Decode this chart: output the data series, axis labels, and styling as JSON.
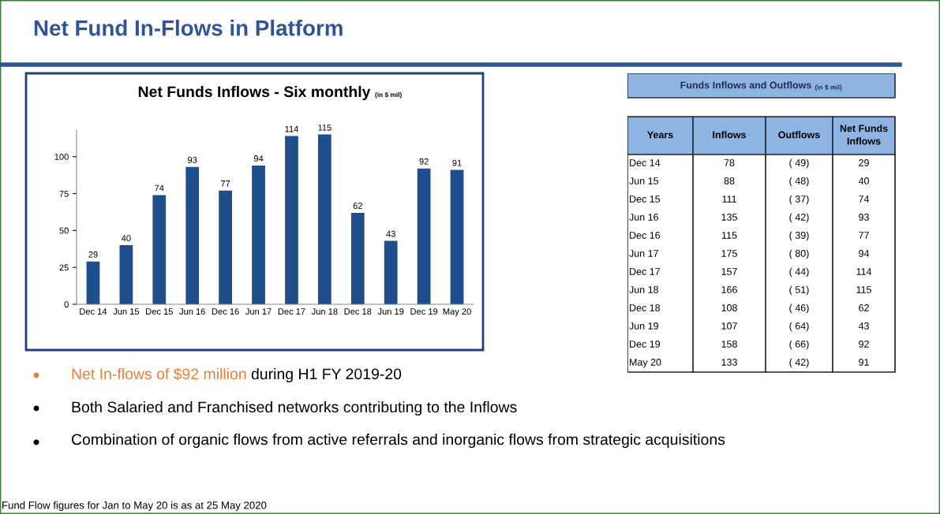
{
  "chart_data": [
    {
      "type": "bar",
      "title": "Net Funds Inflows - Six monthly",
      "subtitle": "(in $ mil)",
      "categories": [
        "Dec 14",
        "Jun 15",
        "Dec 15",
        "Jun 16",
        "Dec 16",
        "Jun 17",
        "Dec 17",
        "Jun 18",
        "Dec 18",
        "Jun 19",
        "Dec 19",
        "May 20"
      ],
      "values": [
        29,
        40,
        74,
        93,
        77,
        94,
        114,
        115,
        62,
        43,
        92,
        91
      ],
      "color": "#1f4e8c",
      "ylim": [
        0,
        118
      ],
      "yticks": [
        0,
        25,
        50,
        75,
        100
      ],
      "grid": false,
      "data_labels": true,
      "annotations": [
        "Net Fund In-Flows in Platform",
        "Net In-flows of $92 million",
        " during H1 FY 2019-20",
        "Both Salaried and Franchised networks contributing to the Inflows",
        "Combination of organic flows from active referrals and inorganic flows from strategic acquisitions",
        "Fund Flow figures for Jan to May 20 is as at 25 May 2020"
      ]
    },
    {
      "type": "other",
      "title": "Funds Inflows and Outflows",
      "subtitle": "(in $ mil)",
      "xlabel": "Years",
      "categories": [
        "Dec 14",
        "Jun 15",
        "Dec 15",
        "Jun 16",
        "Dec 16",
        "Jun 17",
        "Dec 17",
        "Jun 18",
        "Dec 18",
        "Jun 19",
        "Dec 19",
        "May 20"
      ],
      "series": [
        {
          "name": "Inflows",
          "values": [
            78,
            88,
            111,
            135,
            115,
            175,
            157,
            166,
            108,
            107,
            158,
            133
          ]
        },
        {
          "name": "Outflows",
          "values": [
            -49,
            -48,
            -37,
            -42,
            -39,
            -80,
            -44,
            -51,
            -46,
            -64,
            -66,
            -42
          ],
          "value_labels": [
            "( 49)",
            "( 48)",
            "( 37)",
            "( 42)",
            "( 39)",
            "( 80)",
            "( 44)",
            "( 51)",
            "( 46)",
            "( 64)",
            "( 66)",
            "( 42)"
          ]
        },
        {
          "name": "Net Funds Inflows",
          "values": [
            29,
            40,
            74,
            93,
            77,
            94,
            114,
            115,
            62,
            43,
            92,
            91
          ]
        }
      ],
      "data_labels": true
    }
  ]
}
